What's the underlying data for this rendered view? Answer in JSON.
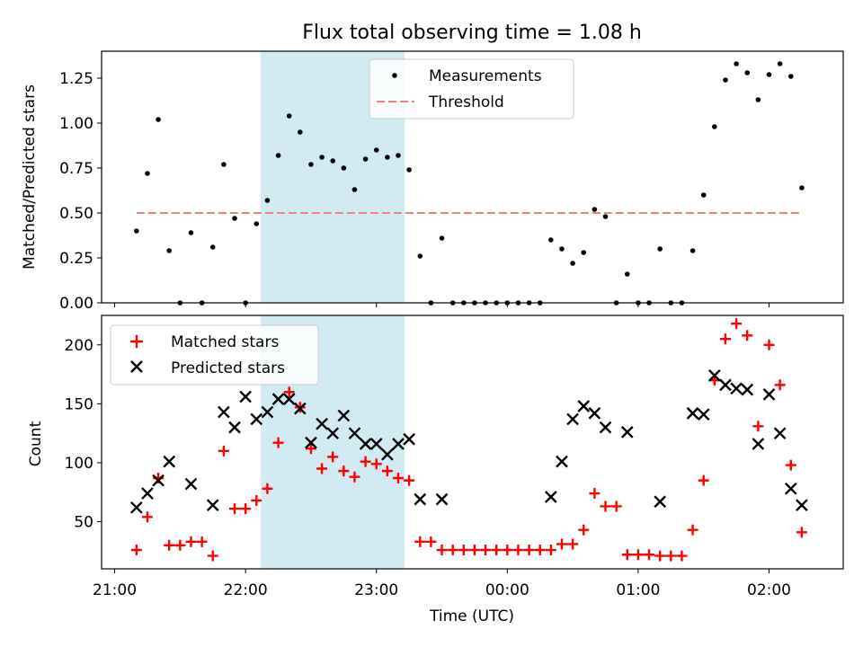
{
  "chart_data": [
    {
      "type": "scatter",
      "title": "Flux total observing time = 1.08 h",
      "xlabel": "",
      "ylabel": "Matched/Predicted stars",
      "xlim": [
        "20:54",
        "02:34"
      ],
      "ylim": [
        0,
        1.4
      ],
      "y_ticks": [
        "0.00",
        "0.25",
        "0.50",
        "0.75",
        "1.00",
        "1.25"
      ],
      "grid": false,
      "legend_position": "upper-center",
      "shaded_region": {
        "start": "22:07",
        "end": "23:13",
        "color": "#add8e6"
      },
      "threshold": {
        "name": "Threshold",
        "value": 0.5,
        "x_start": "21:10",
        "x_end": "02:15",
        "color": "#f08080",
        "style": "dashed"
      },
      "series": [
        {
          "name": "Measurements",
          "color": "#000000",
          "marker": "dot",
          "x": [
            "21:10",
            "21:15",
            "21:20",
            "21:25",
            "21:30",
            "21:35",
            "21:40",
            "21:45",
            "21:50",
            "21:55",
            "22:00",
            "22:05",
            "22:10",
            "22:15",
            "22:20",
            "22:25",
            "22:30",
            "22:35",
            "22:40",
            "22:45",
            "22:50",
            "22:55",
            "23:00",
            "23:05",
            "23:10",
            "23:15",
            "23:20",
            "23:25",
            "23:30",
            "23:35",
            "23:40",
            "23:45",
            "23:50",
            "23:55",
            "00:00",
            "00:05",
            "00:10",
            "00:15",
            "00:20",
            "00:25",
            "00:30",
            "00:35",
            "00:40",
            "00:45",
            "00:50",
            "00:55",
            "01:00",
            "01:05",
            "01:10",
            "01:15",
            "01:20",
            "01:25",
            "01:30",
            "01:35",
            "01:40",
            "01:45",
            "01:50",
            "01:55",
            "02:00",
            "02:05",
            "02:10",
            "02:15"
          ],
          "values": [
            0.4,
            0.72,
            1.02,
            0.29,
            0.0,
            0.39,
            0.0,
            0.31,
            0.77,
            0.47,
            0.0,
            0.44,
            0.57,
            0.82,
            1.04,
            0.95,
            0.77,
            0.81,
            0.79,
            0.75,
            0.63,
            0.8,
            0.85,
            0.81,
            0.82,
            0.74,
            0.26,
            0.0,
            0.36,
            0.0,
            0.0,
            0.0,
            0.0,
            0.0,
            0.0,
            0.0,
            0.0,
            0.0,
            0.35,
            0.3,
            0.22,
            0.28,
            0.52,
            0.48,
            0.0,
            0.16,
            0.0,
            0.0,
            0.3,
            0.0,
            0.0,
            0.29,
            0.6,
            0.98,
            1.24,
            1.33,
            1.28,
            1.13,
            1.27,
            1.33,
            1.26,
            0.64
          ]
        }
      ]
    },
    {
      "type": "scatter",
      "title": "",
      "xlabel": "Time (UTC)",
      "ylabel": "Count",
      "xlim": [
        "20:54",
        "02:34"
      ],
      "ylim": [
        10,
        225
      ],
      "x_ticks": [
        "21:00",
        "22:00",
        "23:00",
        "00:00",
        "01:00",
        "02:00"
      ],
      "y_ticks": [
        "50",
        "100",
        "150",
        "200"
      ],
      "grid": false,
      "legend_position": "upper-left",
      "shaded_region": {
        "start": "22:07",
        "end": "23:13",
        "color": "#add8e6"
      },
      "series": [
        {
          "name": "Matched stars",
          "color": "#ff0000",
          "marker": "plus",
          "x": [
            "21:10",
            "21:15",
            "21:20",
            "21:25",
            "21:30",
            "21:35",
            "21:40",
            "21:45",
            "21:50",
            "21:55",
            "22:00",
            "22:05",
            "22:10",
            "22:15",
            "22:20",
            "22:25",
            "22:30",
            "22:35",
            "22:40",
            "22:45",
            "22:50",
            "22:55",
            "23:00",
            "23:05",
            "23:10",
            "23:15",
            "23:20",
            "23:25",
            "23:30",
            "23:35",
            "23:40",
            "23:45",
            "23:50",
            "23:55",
            "00:00",
            "00:05",
            "00:10",
            "00:15",
            "00:20",
            "00:25",
            "00:30",
            "00:35",
            "00:40",
            "00:45",
            "00:50",
            "00:55",
            "01:00",
            "01:05",
            "01:10",
            "01:15",
            "01:20",
            "01:25",
            "01:30",
            "01:35",
            "01:40",
            "01:45",
            "01:50",
            "01:55",
            "02:00",
            "02:05",
            "02:10",
            "02:15"
          ],
          "values": [
            26,
            54,
            87,
            30,
            30,
            33,
            33,
            21,
            110,
            61,
            61,
            68,
            78,
            117,
            160,
            147,
            112,
            95,
            105,
            93,
            88,
            101,
            99,
            93,
            87,
            85,
            33,
            33,
            26,
            26,
            26,
            26,
            26,
            26,
            26,
            26,
            26,
            26,
            26,
            31,
            31,
            43,
            74,
            63,
            63,
            22,
            22,
            22,
            21,
            21,
            21,
            43,
            85,
            170,
            205,
            218,
            208,
            131,
            200,
            166,
            98,
            41
          ]
        },
        {
          "name": "Predicted stars",
          "color": "#000000",
          "marker": "x",
          "x": [
            "21:10",
            "21:15",
            "21:20",
            "21:25",
            "21:35",
            "21:45",
            "21:50",
            "21:55",
            "22:00",
            "22:05",
            "22:10",
            "22:15",
            "22:20",
            "22:25",
            "22:30",
            "22:35",
            "22:40",
            "22:45",
            "22:50",
            "22:55",
            "23:00",
            "23:05",
            "23:10",
            "23:15",
            "23:20",
            "23:30",
            "00:20",
            "00:25",
            "00:30",
            "00:35",
            "00:40",
            "00:45",
            "00:55",
            "01:10",
            "01:25",
            "01:30",
            "01:35",
            "01:40",
            "01:45",
            "01:50",
            "01:55",
            "02:00",
            "02:05",
            "02:10",
            "02:15"
          ],
          "values": [
            62,
            74,
            85,
            101,
            82,
            64,
            143,
            130,
            156,
            137,
            143,
            154,
            154,
            146,
            117,
            133,
            125,
            140,
            125,
            116,
            116,
            107,
            116,
            120,
            69,
            69,
            71,
            101,
            137,
            148,
            142,
            130,
            126,
            67,
            142,
            141,
            174,
            166,
            163,
            162,
            116,
            158,
            125,
            78,
            64
          ]
        }
      ]
    }
  ]
}
